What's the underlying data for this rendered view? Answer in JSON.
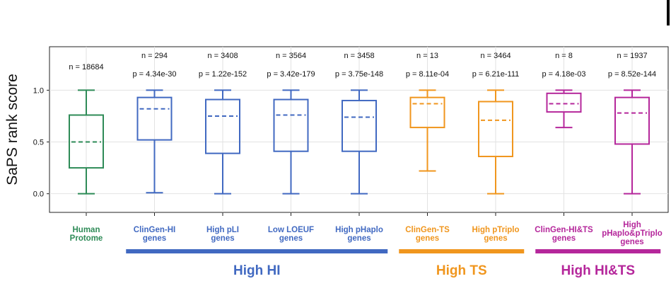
{
  "chart_data": {
    "type": "box",
    "ylabel": "SaPS rank score",
    "ylim": [
      -0.18,
      1.42
    ],
    "yticks": [
      0.0,
      0.5,
      1.0
    ],
    "ytick_labels": [
      "0.0",
      "0.5",
      "1.0"
    ],
    "grid": true,
    "categories": [
      {
        "label": [
          "Human",
          "Protome"
        ],
        "n": "n = 18684",
        "p": "",
        "color": "#2e8b57",
        "q1": 0.25,
        "median": 0.5,
        "q3": 0.76,
        "whisker_low": 0.0,
        "whisker_high": 1.0
      },
      {
        "label": [
          "ClinGen-HI",
          "genes"
        ],
        "n": "n = 294",
        "p": "p = 4.34e-30",
        "color": "#4169c1",
        "q1": 0.52,
        "median": 0.82,
        "q3": 0.93,
        "whisker_low": 0.01,
        "whisker_high": 1.0
      },
      {
        "label": [
          "High pLI",
          "genes"
        ],
        "n": "n = 3408",
        "p": "p = 1.22e-152",
        "color": "#4169c1",
        "q1": 0.39,
        "median": 0.75,
        "q3": 0.91,
        "whisker_low": 0.0,
        "whisker_high": 1.0
      },
      {
        "label": [
          "Low LOEUF",
          "genes"
        ],
        "n": "n = 3564",
        "p": "p = 3.42e-179",
        "color": "#4169c1",
        "q1": 0.41,
        "median": 0.76,
        "q3": 0.91,
        "whisker_low": 0.0,
        "whisker_high": 1.0
      },
      {
        "label": [
          "High pHaplo",
          "genes"
        ],
        "n": "n = 3458",
        "p": "p = 3.75e-148",
        "color": "#4169c1",
        "q1": 0.41,
        "median": 0.74,
        "q3": 0.9,
        "whisker_low": 0.0,
        "whisker_high": 1.0
      },
      {
        "label": [
          "ClinGen-TS",
          "genes"
        ],
        "n": "n = 13",
        "p": "p = 8.11e-04",
        "color": "#f0961e",
        "q1": 0.64,
        "median": 0.87,
        "q3": 0.93,
        "whisker_low": 0.22,
        "whisker_high": 1.0
      },
      {
        "label": [
          "High pTriplo",
          "genes"
        ],
        "n": "n = 3464",
        "p": "p = 6.21e-111",
        "color": "#f0961e",
        "q1": 0.36,
        "median": 0.71,
        "q3": 0.89,
        "whisker_low": 0.0,
        "whisker_high": 1.0
      },
      {
        "label": [
          "ClinGen-HI&TS",
          "genes"
        ],
        "n": "n = 8",
        "p": "p = 4.18e-03",
        "color": "#b5279b",
        "q1": 0.79,
        "median": 0.87,
        "q3": 0.97,
        "whisker_low": 0.64,
        "whisker_high": 1.0
      },
      {
        "label": [
          "High",
          "pHaplo&pTriplo",
          "genes"
        ],
        "n": "n = 1937",
        "p": "p = 8.52e-144",
        "color": "#b5279b",
        "q1": 0.48,
        "median": 0.78,
        "q3": 0.93,
        "whisker_low": 0.0,
        "whisker_high": 1.0
      }
    ],
    "groups": [
      {
        "label": "High HI",
        "from": 1,
        "to": 4,
        "color": "#4169c1"
      },
      {
        "label": "High TS",
        "from": 5,
        "to": 6,
        "color": "#f0961e"
      },
      {
        "label": "High HI&TS",
        "from": 7,
        "to": 8,
        "color": "#b5279b"
      }
    ]
  }
}
